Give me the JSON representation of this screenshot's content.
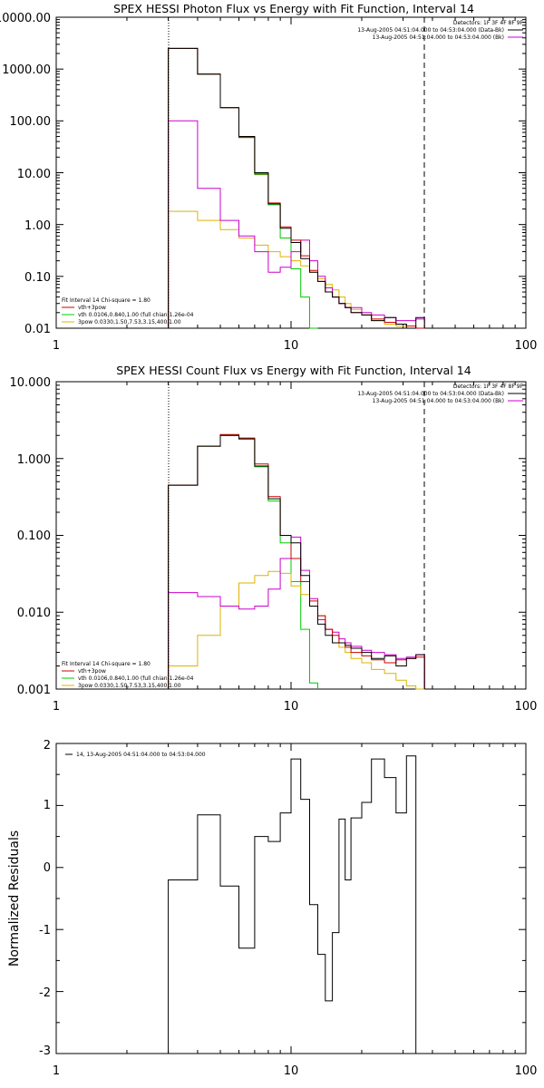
{
  "colors": {
    "data": "#000000",
    "total": "#cc0000",
    "thermal": "#00cc00",
    "power": "#dcb400",
    "background": "#cc00cc"
  },
  "chart_data": [
    {
      "type": "line",
      "title": "SPEX HESSI Photon Flux vs Energy with Fit Function, Interval 14",
      "xlim": [
        1,
        100
      ],
      "ylim": [
        0.01,
        10000
      ],
      "xscale": "log",
      "yscale": "log",
      "x_ticks": [
        "1",
        "10",
        "100"
      ],
      "y_ticks": [
        "0.01",
        "0.10",
        "1.00",
        "10.00",
        "100.00",
        "1000.00",
        "10000.00"
      ],
      "vlines": [
        3,
        37
      ],
      "legend_top": [
        "Detectors: 1F 3F 4F 8F 9F",
        "13-Aug-2005 04:51:04.000 to 04:53:04.000 (Data-Bk)",
        "13-Aug-2005 04:51:04.000 to 04:53:04.000 (Bk)"
      ],
      "legend_bottom": [
        "Fit Interval 14   Chi-square = 1.80",
        "vth+3pow",
        "vth 0.0106,0.840,1.00  (full chian:1.26e-04",
        "3pow 0.0330,1.50,7.53,3.15,400,1.00"
      ],
      "edges": [
        3,
        4,
        5,
        6,
        7,
        8,
        9,
        10,
        11,
        12,
        13,
        14,
        15,
        16,
        17,
        18,
        20,
        22,
        25,
        28,
        31,
        34,
        37
      ],
      "series": [
        {
          "name": "Data-Bk",
          "values": [
            2500,
            800,
            180,
            50,
            10,
            2.5,
            0.85,
            0.45,
            0.22,
            0.12,
            0.08,
            0.05,
            0.04,
            0.03,
            0.025,
            0.02,
            0.018,
            0.014,
            0.016,
            0.012,
            0.01,
            0.016
          ]
        },
        {
          "name": "vth+3pow",
          "values": [
            2500,
            800,
            180,
            48,
            9.5,
            2.6,
            0.9,
            0.5,
            0.25,
            0.13,
            0.08,
            0.05,
            0.04,
            0.03,
            0.025,
            0.02,
            0.018,
            0.015,
            0.013,
            0.012,
            0.011,
            0.01
          ]
        },
        {
          "name": "vth",
          "values": [
            2500,
            800,
            180,
            48,
            9.2,
            2.4,
            0.55,
            0.14,
            0.04,
            0.008
          ]
        },
        {
          "name": "3pow",
          "values": [
            1.8,
            1.2,
            0.8,
            0.55,
            0.4,
            0.3,
            0.24,
            0.2,
            0.16,
            0.12,
            0.09,
            0.07,
            0.055,
            0.04,
            0.03,
            0.023,
            0.018,
            0.014,
            0.012,
            0.011,
            0.01,
            0.009
          ]
        },
        {
          "name": "Bk",
          "values": [
            100,
            5,
            1.2,
            0.6,
            0.3,
            0.12,
            0.15,
            0.3,
            0.5,
            0.2,
            0.1,
            0.06,
            0.04,
            0.03,
            0.025,
            0.025,
            0.02,
            0.018,
            0.016,
            0.014,
            0.014,
            0.015
          ]
        }
      ]
    },
    {
      "type": "line",
      "title": "SPEX HESSI Count Flux vs Energy with Fit Function, Interval 14",
      "xlim": [
        1,
        100
      ],
      "ylim": [
        0.001,
        10
      ],
      "xscale": "log",
      "yscale": "log",
      "x_ticks": [
        "1",
        "10",
        "100"
      ],
      "y_ticks": [
        "0.001",
        "0.010",
        "0.100",
        "1.000",
        "10.000"
      ],
      "vlines": [
        3,
        37
      ],
      "legend_top": [
        "Detectors: 1F 3F 4F 8F 9F",
        "13-Aug-2005 04:51:04.000 to 04:53:04.000 (Data-Bk)",
        "13-Aug-2005 04:51:04.000 to 04:53:04.000 (Bk)"
      ],
      "legend_bottom": [
        "Fit Interval 14   Chi-square = 1.80",
        "vth+3pow",
        "vth 0.0106,0.840,1.00  (full chian:1.26e-04",
        "3pow 0.0330,1.50,7.53,3.15,400,1.00"
      ],
      "edges": [
        3,
        4,
        5,
        6,
        7,
        8,
        9,
        10,
        11,
        12,
        13,
        14,
        15,
        16,
        17,
        18,
        20,
        22,
        25,
        28,
        31,
        34,
        37
      ],
      "series": [
        {
          "name": "Data-Bk",
          "values": [
            0.45,
            1.45,
            2.0,
            1.8,
            0.8,
            0.3,
            0.1,
            0.08,
            0.03,
            0.012,
            0.007,
            0.005,
            0.004,
            0.004,
            0.0037,
            0.0034,
            0.003,
            0.0025,
            0.0027,
            0.002,
            0.0025,
            0.0028
          ]
        },
        {
          "name": "vth+3pow",
          "values": [
            0.45,
            1.45,
            2.05,
            1.85,
            0.85,
            0.32,
            0.1,
            0.05,
            0.025,
            0.014,
            0.009,
            0.006,
            0.005,
            0.004,
            0.0035,
            0.003,
            0.0027,
            0.0024,
            0.0022,
            0.0024,
            0.0025,
            0.0026
          ]
        },
        {
          "name": "vth",
          "values": [
            0.45,
            1.45,
            2.0,
            1.8,
            0.78,
            0.28,
            0.08,
            0.025,
            0.006,
            0.0012
          ]
        },
        {
          "name": "3pow",
          "values": [
            0.002,
            0.005,
            0.012,
            0.024,
            0.03,
            0.034,
            0.032,
            0.022,
            0.017,
            0.012,
            0.009,
            0.006,
            0.004,
            0.0035,
            0.003,
            0.0025,
            0.0022,
            0.0018,
            0.0016,
            0.0013,
            0.0011,
            0.001
          ]
        },
        {
          "name": "Bk",
          "values": [
            0.018,
            0.016,
            0.012,
            0.011,
            0.012,
            0.02,
            0.05,
            0.095,
            0.035,
            0.015,
            0.008,
            0.006,
            0.0055,
            0.0045,
            0.004,
            0.0036,
            0.0032,
            0.003,
            0.0028,
            0.0025,
            0.0026,
            0.0028
          ]
        }
      ]
    },
    {
      "type": "line",
      "title": "",
      "ylabel": "Normalized Residuals",
      "xlim": [
        1,
        100
      ],
      "ylim": [
        -3,
        2
      ],
      "xscale": "log",
      "yscale": "linear",
      "x_ticks": [
        "1",
        "10",
        "100"
      ],
      "y_ticks": [
        "-3",
        "-2",
        "-1",
        "0",
        "1",
        "2"
      ],
      "legend_top": [
        "14, 13-Aug-2005 04:51:04.000 to 04:53:04.000"
      ],
      "edges": [
        3,
        4,
        5,
        6,
        7,
        8,
        9,
        10,
        11,
        12,
        13,
        14,
        15,
        16,
        17,
        18,
        20,
        22,
        25,
        28,
        31,
        34,
        37
      ],
      "series": [
        {
          "name": "14, 13-Aug-2005 04:51:04.000 to 04:53:04.000",
          "values": [
            -0.2,
            0.85,
            -0.3,
            -1.3,
            0.5,
            0.42,
            0.88,
            1.75,
            1.1,
            -0.6,
            -1.4,
            -2.15,
            -1.05,
            0.78,
            -0.2,
            0.8,
            1.05,
            1.75,
            1.45,
            0.88,
            1.8,
            -3.05
          ]
        }
      ]
    }
  ]
}
